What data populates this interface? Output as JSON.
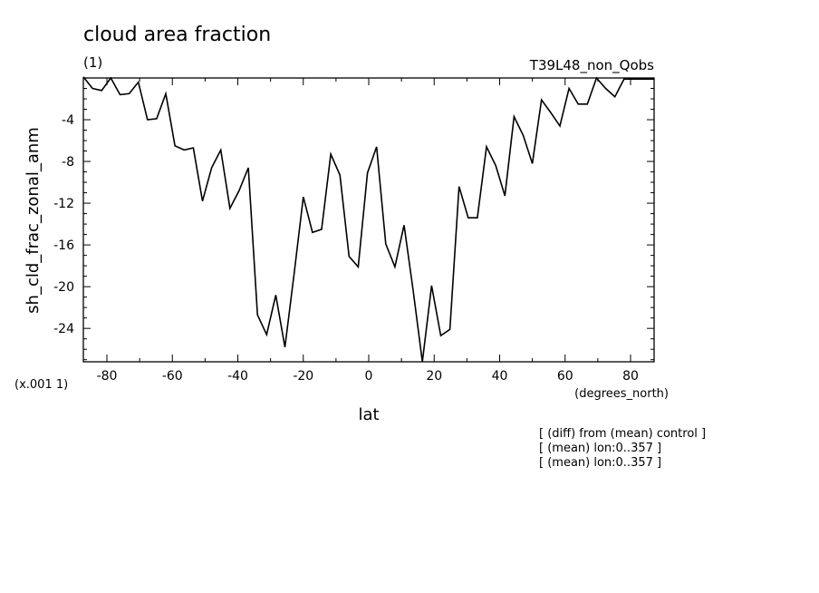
{
  "header": {
    "title": "cloud area fraction",
    "units": "(1)",
    "experiment": "T39L48_non_Qobs"
  },
  "axes": {
    "ylabel": "sh_cld_frac_zonal_anm",
    "xlabel": "lat",
    "xunits": "(degrees_north)",
    "yscale_note": "(x.001 1)"
  },
  "notes": [
    "[ (diff) from (mean) control ]",
    "[ (mean) lon:0..357 ]",
    "[ (mean) lon:0..357 ]"
  ],
  "chart_data": {
    "type": "line",
    "title": "cloud area fraction",
    "xlabel": "lat",
    "ylabel": "sh_cld_frac_zonal_anm",
    "xlim": [
      -87.2,
      87.2
    ],
    "ylim": [
      -27.2,
      0
    ],
    "xticks": [
      -80,
      -60,
      -40,
      -20,
      0,
      20,
      40,
      60,
      80
    ],
    "xtick_labels": [
      "-80",
      "-60",
      "-40",
      "-20",
      "0",
      "20",
      "40",
      "60",
      "80"
    ],
    "yticks": [
      -4,
      -8,
      -12,
      -16,
      -20,
      -24
    ],
    "ytick_labels": [
      "-4",
      "-8",
      "-12",
      "-16",
      "-20",
      "-24"
    ],
    "grid": false,
    "series": [
      {
        "x": [
          -87.2,
          -84.4,
          -81.6,
          -78.8,
          -76.0,
          -73.2,
          -70.4,
          -67.6,
          -64.8,
          -62.0,
          -59.2,
          -56.4,
          -53.6,
          -50.8,
          -48.0,
          -45.2,
          -42.4,
          -39.6,
          -36.8,
          -34.0,
          -31.2,
          -28.4,
          -25.6,
          -22.8,
          -20.0,
          -17.2,
          -14.4,
          -11.6,
          -8.8,
          -6.0,
          -3.2,
          -0.4,
          2.4,
          5.2,
          8.0,
          10.8,
          13.6,
          16.4,
          19.2,
          22.0,
          24.8,
          27.6,
          30.4,
          33.2,
          36.0,
          38.8,
          41.6,
          44.4,
          47.2,
          50.0,
          52.8,
          55.6,
          58.4,
          61.2,
          64.0,
          66.8,
          69.6,
          72.4,
          75.2,
          78.0,
          80.8,
          83.6,
          86.4,
          87.2
        ],
        "y": [
          0.1,
          -1.0,
          -1.2,
          0.0,
          -1.6,
          -1.5,
          -0.4,
          -4.0,
          -3.9,
          -1.5,
          -6.5,
          -6.9,
          -6.7,
          -11.8,
          -8.6,
          -6.9,
          -12.5,
          -10.8,
          -8.6,
          -22.7,
          -24.6,
          -20.8,
          -25.8,
          -18.8,
          -11.4,
          -14.8,
          -14.5,
          -7.3,
          -9.3,
          -17.1,
          -18.1,
          -9.1,
          -6.6,
          -15.9,
          -18.1,
          -14.1,
          -20.4,
          -27.2,
          -19.9,
          -24.7,
          -24.1,
          -10.4,
          -13.4,
          -13.4,
          -6.6,
          -8.4,
          -11.3,
          -3.7,
          -5.5,
          -8.2,
          -2.1,
          -3.3,
          -4.6,
          -1.0,
          -2.5,
          -2.5,
          0.0,
          -1.0,
          -1.8,
          -0.1,
          -0.1,
          -0.1,
          -0.1,
          -0.1
        ]
      }
    ]
  }
}
